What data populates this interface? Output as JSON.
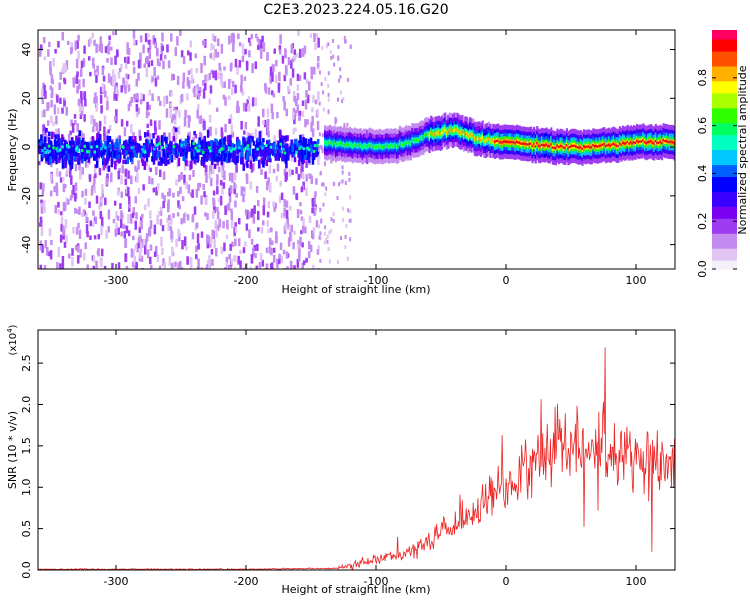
{
  "title": "C2E3.2023.224.05.16.G20",
  "colors": {
    "snr_line": "#ee2222",
    "axis": "#000000",
    "colormap": [
      "#f6f0fb",
      "#e0c4f4",
      "#c48bf0",
      "#9f3cf2",
      "#7a00f0",
      "#3a00ff",
      "#0000ff",
      "#0060ff",
      "#00c8ff",
      "#00ffc0",
      "#00ff60",
      "#30ff00",
      "#aaff00",
      "#ffff00",
      "#ffb000",
      "#ff5000",
      "#ff0000",
      "#ff0060"
    ]
  },
  "chart_data": [
    {
      "type": "heatmap",
      "title": "C2E3.2023.224.05.16.G20",
      "xlabel": "Height of straight line (km)",
      "ylabel": "Frequency (Hz)",
      "xlim": [
        -360,
        130
      ],
      "ylim": [
        -50,
        48
      ],
      "x_ticks": [
        -300,
        -200,
        -100,
        0,
        100
      ],
      "x_tick_labels": [
        "-300",
        "-200",
        "-100",
        "0",
        "100"
      ],
      "y_ticks": [
        -40,
        -20,
        0,
        20,
        40
      ],
      "y_tick_labels": [
        "-40",
        "-20",
        "0",
        "20",
        "40"
      ],
      "grid": false,
      "colorbar": {
        "label": "Normalized spectral amplitude",
        "range": [
          0,
          1
        ],
        "ticks": [
          0.0,
          0.2,
          0.4,
          0.6,
          0.8
        ],
        "tick_labels": [
          "0.0",
          "0.2",
          "0.4",
          "0.6",
          "0.8"
        ],
        "placement": "right"
      },
      "ridge": {
        "x": [
          -140,
          -120,
          -100,
          -80,
          -60,
          -40,
          -20,
          0,
          20,
          40,
          60,
          80,
          100,
          130
        ],
        "y": [
          2,
          1,
          0,
          1,
          5,
          7,
          3,
          2,
          1,
          0,
          0,
          1,
          2,
          2
        ]
      },
      "noise_region_x": [
        -360,
        -145
      ]
    },
    {
      "type": "line",
      "xlabel": "Height of straight line (km)",
      "ylabel": "SNR (10 * v/v)",
      "y_multiplier_label": "(x10",
      "y_multiplier_exponent": "4",
      "y_multiplier_suffix": ")",
      "xlim": [
        -360,
        130
      ],
      "ylim": [
        0,
        2.9
      ],
      "x_ticks": [
        -300,
        -200,
        -100,
        0,
        100
      ],
      "x_tick_labels": [
        "-300",
        "-200",
        "-100",
        "0",
        "100"
      ],
      "y_ticks": [
        0,
        0.5,
        1.0,
        1.5,
        2.0,
        2.5
      ],
      "y_tick_labels": [
        "0.0",
        "0.5",
        "1.0",
        "1.5",
        "2.0",
        "2.5"
      ],
      "grid": false,
      "series": [
        {
          "x": [
            -360,
            -300,
            -200,
            -130,
            -120,
            -110,
            -100,
            -90,
            -80,
            -70,
            -60,
            -50,
            -40,
            -30,
            -20,
            -10,
            0,
            10,
            20,
            30,
            40,
            50,
            60,
            70,
            80,
            90,
            100,
            110,
            120,
            130
          ],
          "y": [
            0.01,
            0.01,
            0.01,
            0.02,
            0.05,
            0.08,
            0.12,
            0.16,
            0.2,
            0.26,
            0.33,
            0.42,
            0.52,
            0.62,
            0.75,
            0.9,
            1.0,
            1.15,
            1.3,
            1.45,
            1.52,
            1.55,
            1.5,
            1.45,
            1.42,
            1.4,
            1.38,
            1.35,
            1.3,
            1.25
          ]
        }
      ]
    }
  ]
}
